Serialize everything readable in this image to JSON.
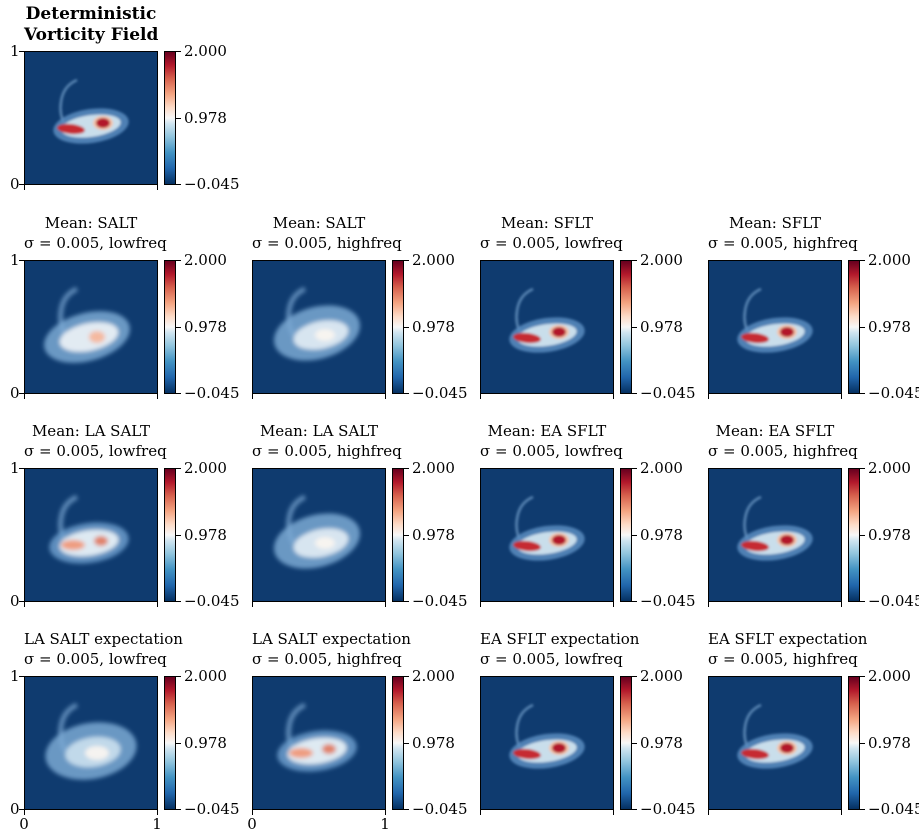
{
  "colors": {
    "low": "#053061",
    "mid": "#f7f7f7",
    "high": "#67001f",
    "background_field": "#0f3b6f"
  },
  "chart_data": [
    {
      "type": "heatmap",
      "title_line1": "Deterministic",
      "title_line2": "Vorticity Field",
      "pattern": "deterministic",
      "xlim": [
        0,
        1
      ],
      "ylim": [
        0,
        1
      ],
      "clim": [
        -0.045,
        2.0
      ],
      "colorbar_ticks": [
        "2.000",
        "0.978",
        "−0.045"
      ],
      "colormap": "RdBu_r",
      "y_tick_labels": [
        "1",
        "0"
      ],
      "x_tick_labels": []
    },
    {
      "type": "heatmap",
      "title_line1": "Mean: SALT",
      "title_line2": "σ = 0.005, lowfreq",
      "pattern": "diffuse",
      "xlim": [
        0,
        1
      ],
      "ylim": [
        0,
        1
      ],
      "clim": [
        -0.045,
        2.0
      ],
      "colorbar_ticks": [
        "2.000",
        "0.978",
        "−0.045"
      ],
      "colormap": "RdBu_r",
      "y_tick_labels": [
        "1",
        "0"
      ],
      "x_tick_labels": []
    },
    {
      "type": "heatmap",
      "title_line1": "Mean: SALT",
      "title_line2": "σ = 0.005, highfreq",
      "pattern": "diffuse_weak",
      "xlim": [
        0,
        1
      ],
      "ylim": [
        0,
        1
      ],
      "clim": [
        -0.045,
        2.0
      ],
      "colorbar_ticks": [
        "2.000",
        "0.978",
        "−0.045"
      ],
      "colormap": "RdBu_r",
      "y_tick_labels": [],
      "x_tick_labels": []
    },
    {
      "type": "heatmap",
      "title_line1": "Mean: SFLT",
      "title_line2": "σ = 0.005, lowfreq",
      "pattern": "deterministic",
      "xlim": [
        0,
        1
      ],
      "ylim": [
        0,
        1
      ],
      "clim": [
        -0.045,
        2.0
      ],
      "colorbar_ticks": [
        "2.000",
        "0.978",
        "−0.045"
      ],
      "colormap": "RdBu_r",
      "y_tick_labels": [],
      "x_tick_labels": []
    },
    {
      "type": "heatmap",
      "title_line1": "Mean: SFLT",
      "title_line2": "σ = 0.005, highfreq",
      "pattern": "deterministic",
      "xlim": [
        0,
        1
      ],
      "ylim": [
        0,
        1
      ],
      "clim": [
        -0.045,
        2.0
      ],
      "colorbar_ticks": [
        "2.000",
        "0.978",
        "−0.045"
      ],
      "colormap": "RdBu_r",
      "y_tick_labels": [],
      "x_tick_labels": []
    },
    {
      "type": "heatmap",
      "title_line1": "Mean: LA SALT",
      "title_line2": "σ = 0.005, lowfreq",
      "pattern": "moderate",
      "xlim": [
        0,
        1
      ],
      "ylim": [
        0,
        1
      ],
      "clim": [
        -0.045,
        2.0
      ],
      "colorbar_ticks": [
        "2.000",
        "0.978",
        "−0.045"
      ],
      "colormap": "RdBu_r",
      "y_tick_labels": [
        "1",
        "0"
      ],
      "x_tick_labels": []
    },
    {
      "type": "heatmap",
      "title_line1": "Mean: LA SALT",
      "title_line2": "σ = 0.005, highfreq",
      "pattern": "diffuse_weak",
      "xlim": [
        0,
        1
      ],
      "ylim": [
        0,
        1
      ],
      "clim": [
        -0.045,
        2.0
      ],
      "colorbar_ticks": [
        "2.000",
        "0.978",
        "−0.045"
      ],
      "colormap": "RdBu_r",
      "y_tick_labels": [],
      "x_tick_labels": []
    },
    {
      "type": "heatmap",
      "title_line1": "Mean: EA SFLT",
      "title_line2": "σ = 0.005, lowfreq",
      "pattern": "deterministic",
      "xlim": [
        0,
        1
      ],
      "ylim": [
        0,
        1
      ],
      "clim": [
        -0.045,
        2.0
      ],
      "colorbar_ticks": [
        "2.000",
        "0.978",
        "−0.045"
      ],
      "colormap": "RdBu_r",
      "y_tick_labels": [],
      "x_tick_labels": []
    },
    {
      "type": "heatmap",
      "title_line1": "Mean: EA SFLT",
      "title_line2": "σ = 0.005, highfreq",
      "pattern": "deterministic",
      "xlim": [
        0,
        1
      ],
      "ylim": [
        0,
        1
      ],
      "clim": [
        -0.045,
        2.0
      ],
      "colorbar_ticks": [
        "2.000",
        "0.978",
        "−0.045"
      ],
      "colormap": "RdBu_r",
      "y_tick_labels": [],
      "x_tick_labels": []
    },
    {
      "type": "heatmap",
      "title_line1": "LA SALT expectation",
      "title_line2": "σ = 0.005, lowfreq",
      "pattern": "smooth_weak",
      "xlim": [
        0,
        1
      ],
      "ylim": [
        0,
        1
      ],
      "clim": [
        -0.045,
        2.0
      ],
      "colorbar_ticks": [
        "2.000",
        "0.978",
        "−0.045"
      ],
      "colormap": "RdBu_r",
      "y_tick_labels": [
        "1",
        "0"
      ],
      "x_tick_labels": [
        "0",
        "1"
      ]
    },
    {
      "type": "heatmap",
      "title_line1": "LA SALT expectation",
      "title_line2": "σ = 0.005, highfreq",
      "pattern": "moderate",
      "xlim": [
        0,
        1
      ],
      "ylim": [
        0,
        1
      ],
      "clim": [
        -0.045,
        2.0
      ],
      "colorbar_ticks": [
        "2.000",
        "0.978",
        "−0.045"
      ],
      "colormap": "RdBu_r",
      "y_tick_labels": [],
      "x_tick_labels": [
        "0",
        "1"
      ]
    },
    {
      "type": "heatmap",
      "title_line1": "EA SFLT expectation",
      "title_line2": "σ = 0.005, lowfreq",
      "pattern": "deterministic",
      "xlim": [
        0,
        1
      ],
      "ylim": [
        0,
        1
      ],
      "clim": [
        -0.045,
        2.0
      ],
      "colorbar_ticks": [
        "2.000",
        "0.978",
        "−0.045"
      ],
      "colormap": "RdBu_r",
      "y_tick_labels": [],
      "x_tick_labels": []
    },
    {
      "type": "heatmap",
      "title_line1": "EA SFLT expectation",
      "title_line2": "σ = 0.005, highfreq",
      "pattern": "deterministic",
      "xlim": [
        0,
        1
      ],
      "ylim": [
        0,
        1
      ],
      "clim": [
        -0.045,
        2.0
      ],
      "colorbar_ticks": [
        "2.000",
        "0.978",
        "−0.045"
      ],
      "colormap": "RdBu_r",
      "y_tick_labels": [],
      "x_tick_labels": []
    }
  ]
}
